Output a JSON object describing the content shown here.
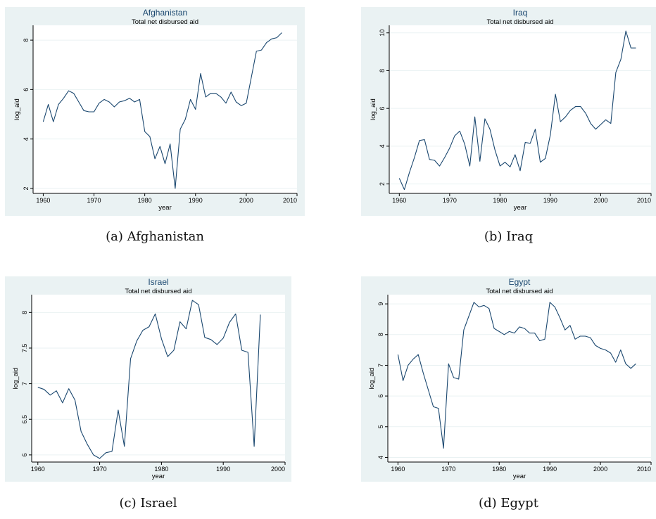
{
  "chart_data": [
    {
      "type": "line",
      "title": "Afghanistan",
      "subtitle": "Total net disbursed aid",
      "xlabel": "year",
      "ylabel": "log_aid",
      "xlim": [
        1958,
        2010
      ],
      "ylim": [
        1.8,
        8.6
      ],
      "xticks": [
        1960,
        1970,
        1980,
        1990,
        2000,
        2010
      ],
      "yticks": [
        2,
        4,
        6,
        8
      ],
      "grid": true,
      "line_color": "#1a476f",
      "x": [
        1960,
        1961,
        1962,
        1963,
        1964,
        1965,
        1966,
        1967,
        1968,
        1969,
        1970,
        1971,
        1972,
        1973,
        1974,
        1975,
        1976,
        1977,
        1978,
        1979,
        1980,
        1981,
        1982,
        1983,
        1984,
        1985,
        1986,
        1987,
        1988,
        1989,
        1990,
        1991,
        1992,
        1993,
        1994,
        1995,
        1996,
        1997,
        1998,
        1999,
        2000,
        2001,
        2002,
        2003,
        2004,
        2005,
        2006,
        2007
      ],
      "values": [
        4.7,
        5.4,
        4.7,
        5.4,
        5.65,
        5.95,
        5.85,
        5.5,
        5.15,
        5.1,
        5.1,
        5.45,
        5.6,
        5.5,
        5.3,
        5.5,
        5.55,
        5.65,
        5.5,
        5.6,
        4.3,
        4.1,
        3.2,
        3.7,
        3.0,
        3.8,
        2.0,
        4.4,
        4.8,
        5.6,
        5.2,
        6.65,
        5.7,
        5.85,
        5.85,
        5.7,
        5.45,
        5.9,
        5.5,
        5.35,
        5.45,
        6.5,
        7.55,
        7.6,
        7.9,
        8.05,
        8.1,
        8.3
      ],
      "caption": "(a)  Afghanistan"
    },
    {
      "type": "line",
      "title": "Iraq",
      "subtitle": "Total net disbursed aid",
      "xlabel": "year",
      "ylabel": "log_aid",
      "xlim": [
        1958,
        2010
      ],
      "ylim": [
        1.5,
        10.4
      ],
      "xticks": [
        1960,
        1970,
        1980,
        1990,
        2000,
        2010
      ],
      "yticks": [
        2,
        4,
        6,
        8,
        10
      ],
      "grid": true,
      "line_color": "#1a476f",
      "x": [
        1960,
        1961,
        1962,
        1963,
        1964,
        1965,
        1966,
        1967,
        1968,
        1969,
        1970,
        1971,
        1972,
        1973,
        1974,
        1975,
        1976,
        1977,
        1978,
        1979,
        1980,
        1981,
        1982,
        1983,
        1984,
        1985,
        1986,
        1987,
        1988,
        1989,
        1990,
        1991,
        1992,
        1993,
        1994,
        1995,
        1996,
        1997,
        1998,
        1999,
        2000,
        2001,
        2002,
        2003,
        2004,
        2005,
        2006,
        2007
      ],
      "values": [
        2.3,
        1.7,
        2.6,
        3.4,
        4.3,
        4.35,
        3.3,
        3.25,
        2.95,
        3.4,
        3.9,
        4.55,
        4.8,
        4.1,
        2.95,
        5.55,
        3.2,
        5.45,
        4.9,
        3.8,
        2.95,
        3.15,
        2.9,
        3.55,
        2.7,
        4.2,
        4.15,
        4.9,
        3.15,
        3.35,
        4.6,
        6.75,
        5.3,
        5.55,
        5.9,
        6.1,
        6.1,
        5.75,
        5.2,
        4.9,
        5.15,
        5.4,
        5.2,
        7.9,
        8.6,
        10.1,
        9.2,
        9.2
      ],
      "caption": "(b)  Iraq"
    },
    {
      "type": "line",
      "title": "Israel",
      "subtitle": "Total net disbursed aid",
      "xlabel": "year",
      "ylabel": "log_aid",
      "xlim": [
        1959,
        2000
      ],
      "ylim": [
        5.9,
        8.25
      ],
      "xticks": [
        1960,
        1970,
        1980,
        1990,
        2000
      ],
      "yticks": [
        6,
        6.5,
        7,
        7.5,
        8
      ],
      "grid": true,
      "line_color": "#1a476f",
      "x": [
        1960,
        1961,
        1962,
        1963,
        1964,
        1965,
        1966,
        1967,
        1968,
        1969,
        1970,
        1971,
        1972,
        1973,
        1974,
        1975,
        1976,
        1977,
        1978,
        1979,
        1980,
        1981,
        1982,
        1983,
        1984,
        1985,
        1986,
        1987,
        1988,
        1989,
        1990,
        1991,
        1992,
        1993,
        1994,
        1995,
        1996
      ],
      "values": [
        6.95,
        6.92,
        6.84,
        6.9,
        6.73,
        6.93,
        6.77,
        6.33,
        6.15,
        6.0,
        5.95,
        6.03,
        6.05,
        6.63,
        6.12,
        7.35,
        7.6,
        7.75,
        7.8,
        7.98,
        7.63,
        7.38,
        7.47,
        7.87,
        7.77,
        8.17,
        8.11,
        7.65,
        7.62,
        7.55,
        7.64,
        7.86,
        7.98,
        7.47,
        7.44,
        6.12,
        7.97
      ],
      "caption": "(c)  Israel"
    },
    {
      "type": "line",
      "title": "Egypt",
      "subtitle": "Total net disbursed aid",
      "xlabel": "year",
      "ylabel": "log_aid",
      "xlim": [
        1958,
        2010
      ],
      "ylim": [
        3.85,
        9.3
      ],
      "xticks": [
        1960,
        1970,
        1980,
        1990,
        2000,
        2010
      ],
      "yticks": [
        4,
        5,
        6,
        7,
        8,
        9
      ],
      "grid": true,
      "line_color": "#1a476f",
      "x": [
        1960,
        1961,
        1962,
        1963,
        1964,
        1965,
        1966,
        1967,
        1968,
        1969,
        1970,
        1971,
        1972,
        1973,
        1974,
        1975,
        1976,
        1977,
        1978,
        1979,
        1980,
        1981,
        1982,
        1983,
        1984,
        1985,
        1986,
        1987,
        1988,
        1989,
        1990,
        1991,
        1992,
        1993,
        1994,
        1995,
        1996,
        1997,
        1998,
        1999,
        2000,
        2001,
        2002,
        2003,
        2004,
        2005,
        2006,
        2007
      ],
      "values": [
        7.35,
        6.5,
        7.0,
        7.2,
        7.35,
        6.75,
        6.2,
        5.65,
        5.6,
        4.3,
        7.05,
        6.6,
        6.55,
        8.15,
        8.6,
        9.05,
        8.9,
        8.95,
        8.85,
        8.2,
        8.1,
        8.0,
        8.1,
        8.05,
        8.25,
        8.2,
        8.05,
        8.05,
        7.8,
        7.85,
        9.05,
        8.9,
        8.55,
        8.15,
        8.3,
        7.85,
        7.95,
        7.95,
        7.9,
        7.65,
        7.55,
        7.5,
        7.4,
        7.1,
        7.5,
        7.05,
        6.9,
        7.05
      ],
      "caption": "(d)  Egypt"
    }
  ]
}
